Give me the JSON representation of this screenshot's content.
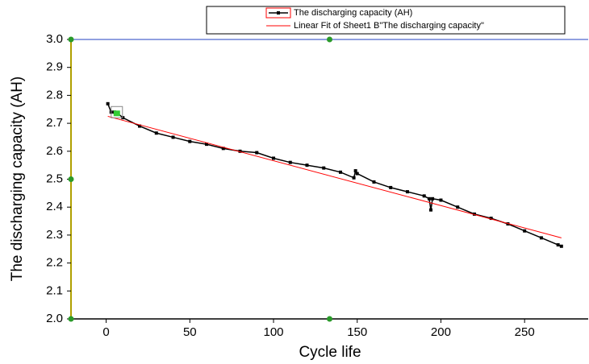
{
  "chart_data": {
    "type": "line",
    "x_label": "Cycle life",
    "y_label": "The discharging capacity (AH)",
    "series": [
      {
        "name": "The discharging capacity (AH)",
        "color": "#000000",
        "markers": true,
        "x": [
          1,
          3,
          5,
          7,
          10,
          20,
          30,
          40,
          50,
          60,
          70,
          80,
          90,
          100,
          110,
          120,
          130,
          140,
          148,
          149,
          150,
          160,
          170,
          180,
          190,
          193,
          194,
          195,
          200,
          210,
          220,
          230,
          240,
          250,
          260,
          270,
          272
        ],
        "values": [
          2.77,
          2.74,
          2.74,
          2.735,
          2.72,
          2.69,
          2.665,
          2.65,
          2.635,
          2.625,
          2.61,
          2.6,
          2.595,
          2.575,
          2.56,
          2.55,
          2.54,
          2.525,
          2.505,
          2.53,
          2.52,
          2.49,
          2.47,
          2.455,
          2.44,
          2.43,
          2.39,
          2.43,
          2.425,
          2.4,
          2.375,
          2.36,
          2.34,
          2.315,
          2.29,
          2.265,
          2.26
        ]
      },
      {
        "name": "Linear Fit of Sheet1 B\"The discharging capacity\"",
        "color": "#ff0000",
        "markers": false,
        "x": [
          1,
          272
        ],
        "values": [
          2.725,
          2.29
        ]
      }
    ],
    "xlim": [
      -21,
      288
    ],
    "xticks": [
      0,
      50,
      100,
      150,
      200,
      250
    ],
    "ylim": [
      2.0,
      3.0
    ],
    "yticks": [
      {
        "value": 2.0,
        "label": "2.0"
      },
      2.1,
      2.2,
      2.3,
      2.4,
      2.5,
      2.6,
      2.7,
      2.8,
      2.9,
      {
        "value": 3.0,
        "label": "3.0"
      }
    ]
  }
}
